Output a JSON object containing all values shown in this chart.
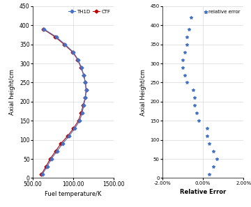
{
  "th1d_heights": [
    10,
    30,
    50,
    70,
    90,
    110,
    130,
    150,
    170,
    190,
    210,
    230,
    250,
    270,
    290,
    310,
    330,
    350,
    370,
    390
  ],
  "th1d_temps": [
    620,
    680,
    730,
    800,
    870,
    950,
    1020,
    1080,
    1110,
    1130,
    1150,
    1160,
    1150,
    1130,
    1100,
    1060,
    1000,
    900,
    790,
    640
  ],
  "ctf_heights": [
    10,
    30,
    50,
    70,
    90,
    110,
    130,
    150,
    170,
    190,
    210,
    230,
    250,
    270,
    290,
    310,
    330,
    350,
    370,
    390
  ],
  "ctf_temps": [
    608,
    665,
    715,
    782,
    848,
    932,
    1003,
    1065,
    1098,
    1122,
    1148,
    1160,
    1150,
    1130,
    1095,
    1055,
    993,
    888,
    775,
    630
  ],
  "rel_error_heights": [
    10,
    30,
    50,
    70,
    90,
    110,
    130,
    150,
    170,
    190,
    210,
    230,
    250,
    270,
    290,
    310,
    330,
    350,
    370,
    390,
    420
  ],
  "rel_error_values": [
    0.003,
    0.005,
    0.007,
    0.005,
    0.003,
    0.002,
    0.002,
    -0.002,
    -0.003,
    -0.004,
    -0.004,
    -0.005,
    -0.008,
    -0.009,
    -0.01,
    -0.01,
    -0.009,
    -0.008,
    -0.008,
    -0.007,
    -0.006
  ],
  "left_xlim": [
    500,
    1500
  ],
  "left_ylim": [
    0,
    450
  ],
  "right_xlim": [
    -0.02,
    0.02
  ],
  "right_ylim": [
    0,
    450
  ],
  "th1d_color": "#4472C4",
  "ctf_color": "#C00000",
  "error_color": "#4472C4",
  "ylabel_left": "Axial height/cm",
  "ylabel_right": "Axial Height/cm",
  "xlabel_left": "Fuel temperature/K",
  "xlabel_right": "Relative Error",
  "legend_label_th1d": "TH1D",
  "legend_label_ctf": "CTF",
  "legend_label_error": "relative error",
  "left_xticks": [
    500.0,
    1000.0,
    1500.0
  ],
  "left_yticks": [
    0,
    50,
    100,
    150,
    200,
    250,
    300,
    350,
    400,
    450
  ],
  "right_yticks": [
    0,
    50,
    100,
    150,
    200,
    250,
    300,
    350,
    400,
    450
  ],
  "right_xticks": [
    -0.02,
    0.0,
    0.02
  ]
}
